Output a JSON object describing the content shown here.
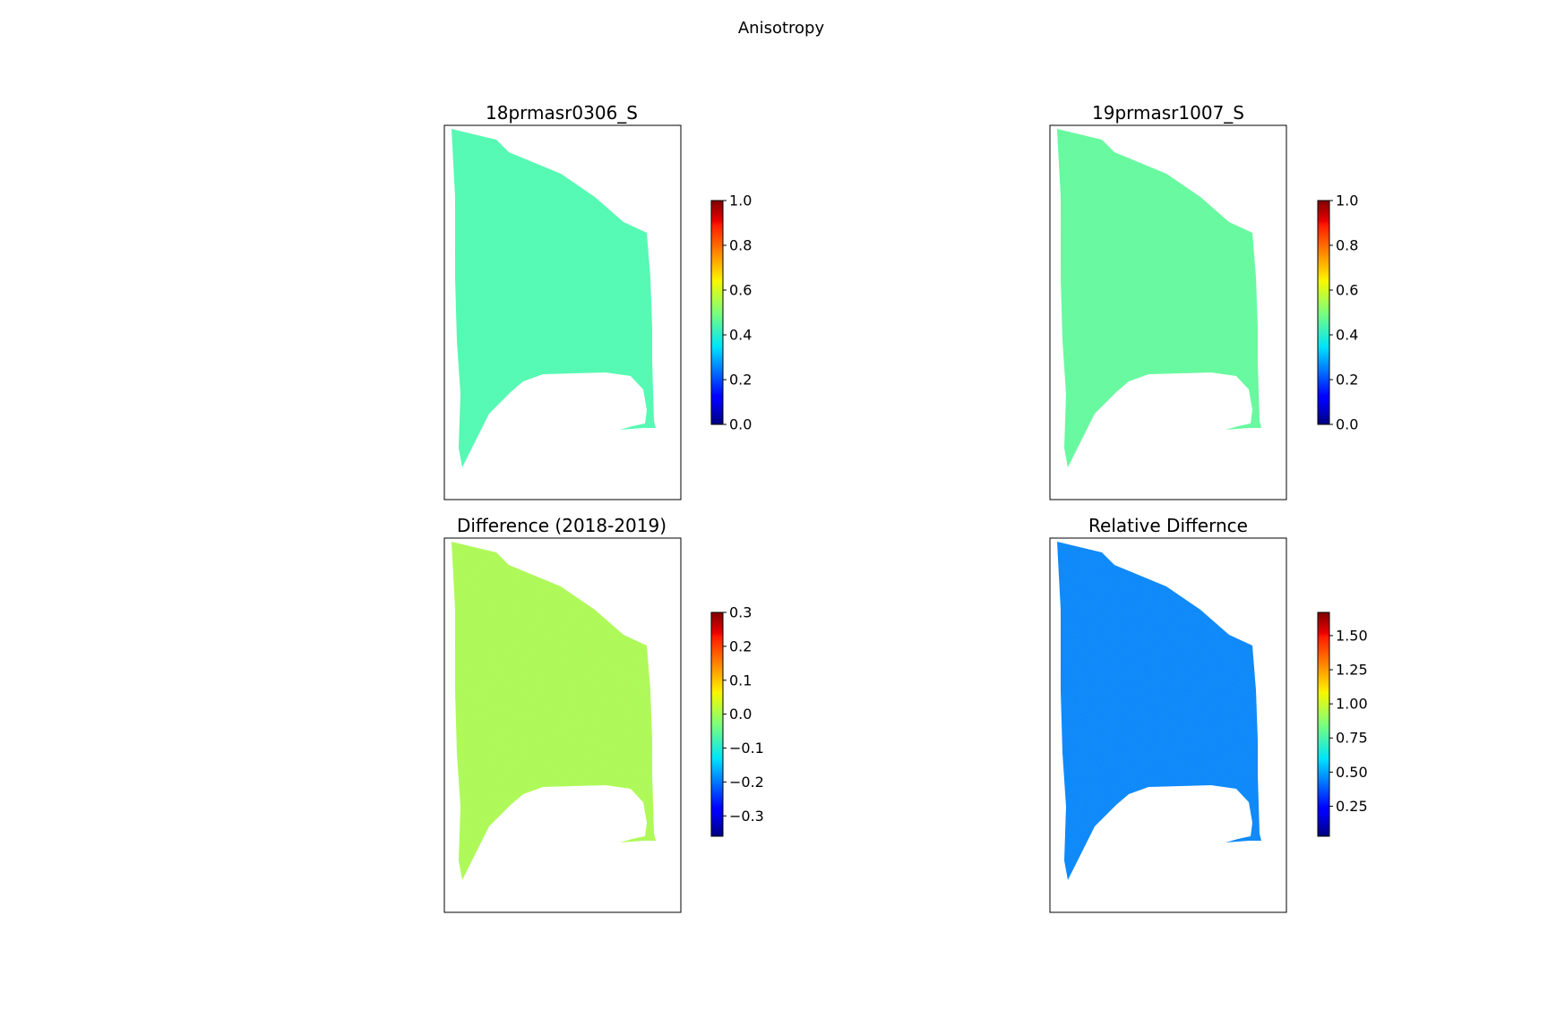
{
  "figure": {
    "title": "Anisotropy"
  },
  "colormap": "jet",
  "chart_data": [
    {
      "type": "heatmap",
      "title": "18prmasr0306_S",
      "colorbar": {
        "range": [
          0.0,
          1.0
        ],
        "ticks": [
          0.0,
          0.2,
          0.4,
          0.6,
          0.8,
          1.0
        ],
        "tick_labels": [
          "0.0",
          "0.2",
          "0.4",
          "0.6",
          "0.8",
          "1.0"
        ]
      },
      "typical_value": 0.45,
      "grid": false,
      "xticks": [],
      "yticks": []
    },
    {
      "type": "heatmap",
      "title": "19prmasr1007_S",
      "colorbar": {
        "range": [
          0.0,
          1.0
        ],
        "ticks": [
          0.0,
          0.2,
          0.4,
          0.6,
          0.8,
          1.0
        ],
        "tick_labels": [
          "0.0",
          "0.2",
          "0.4",
          "0.6",
          "0.8",
          "1.0"
        ]
      },
      "typical_value": 0.47,
      "grid": false,
      "xticks": [],
      "yticks": []
    },
    {
      "type": "heatmap",
      "title": "Difference (2018-2019)",
      "colorbar": {
        "range": [
          -0.36,
          0.3
        ],
        "ticks": [
          0.3,
          0.2,
          0.1,
          0.0,
          -0.1,
          -0.2,
          -0.3
        ],
        "tick_labels": [
          "0.3",
          "0.2",
          "0.1",
          "0.0",
          "−0.1",
          "−0.2",
          "−0.3"
        ]
      },
      "typical_value": 0.0,
      "grid": false,
      "xticks": [],
      "yticks": []
    },
    {
      "type": "heatmap",
      "title": "Relative Differnce",
      "colorbar": {
        "range": [
          0.03,
          1.67
        ],
        "ticks": [
          1.5,
          1.25,
          1.0,
          0.75,
          0.5,
          0.25
        ],
        "tick_labels": [
          "1.50",
          "1.25",
          "1.00",
          "0.75",
          "0.50",
          "0.25"
        ]
      },
      "typical_value": 0.45,
      "grid": false,
      "xticks": [],
      "yticks": []
    }
  ]
}
